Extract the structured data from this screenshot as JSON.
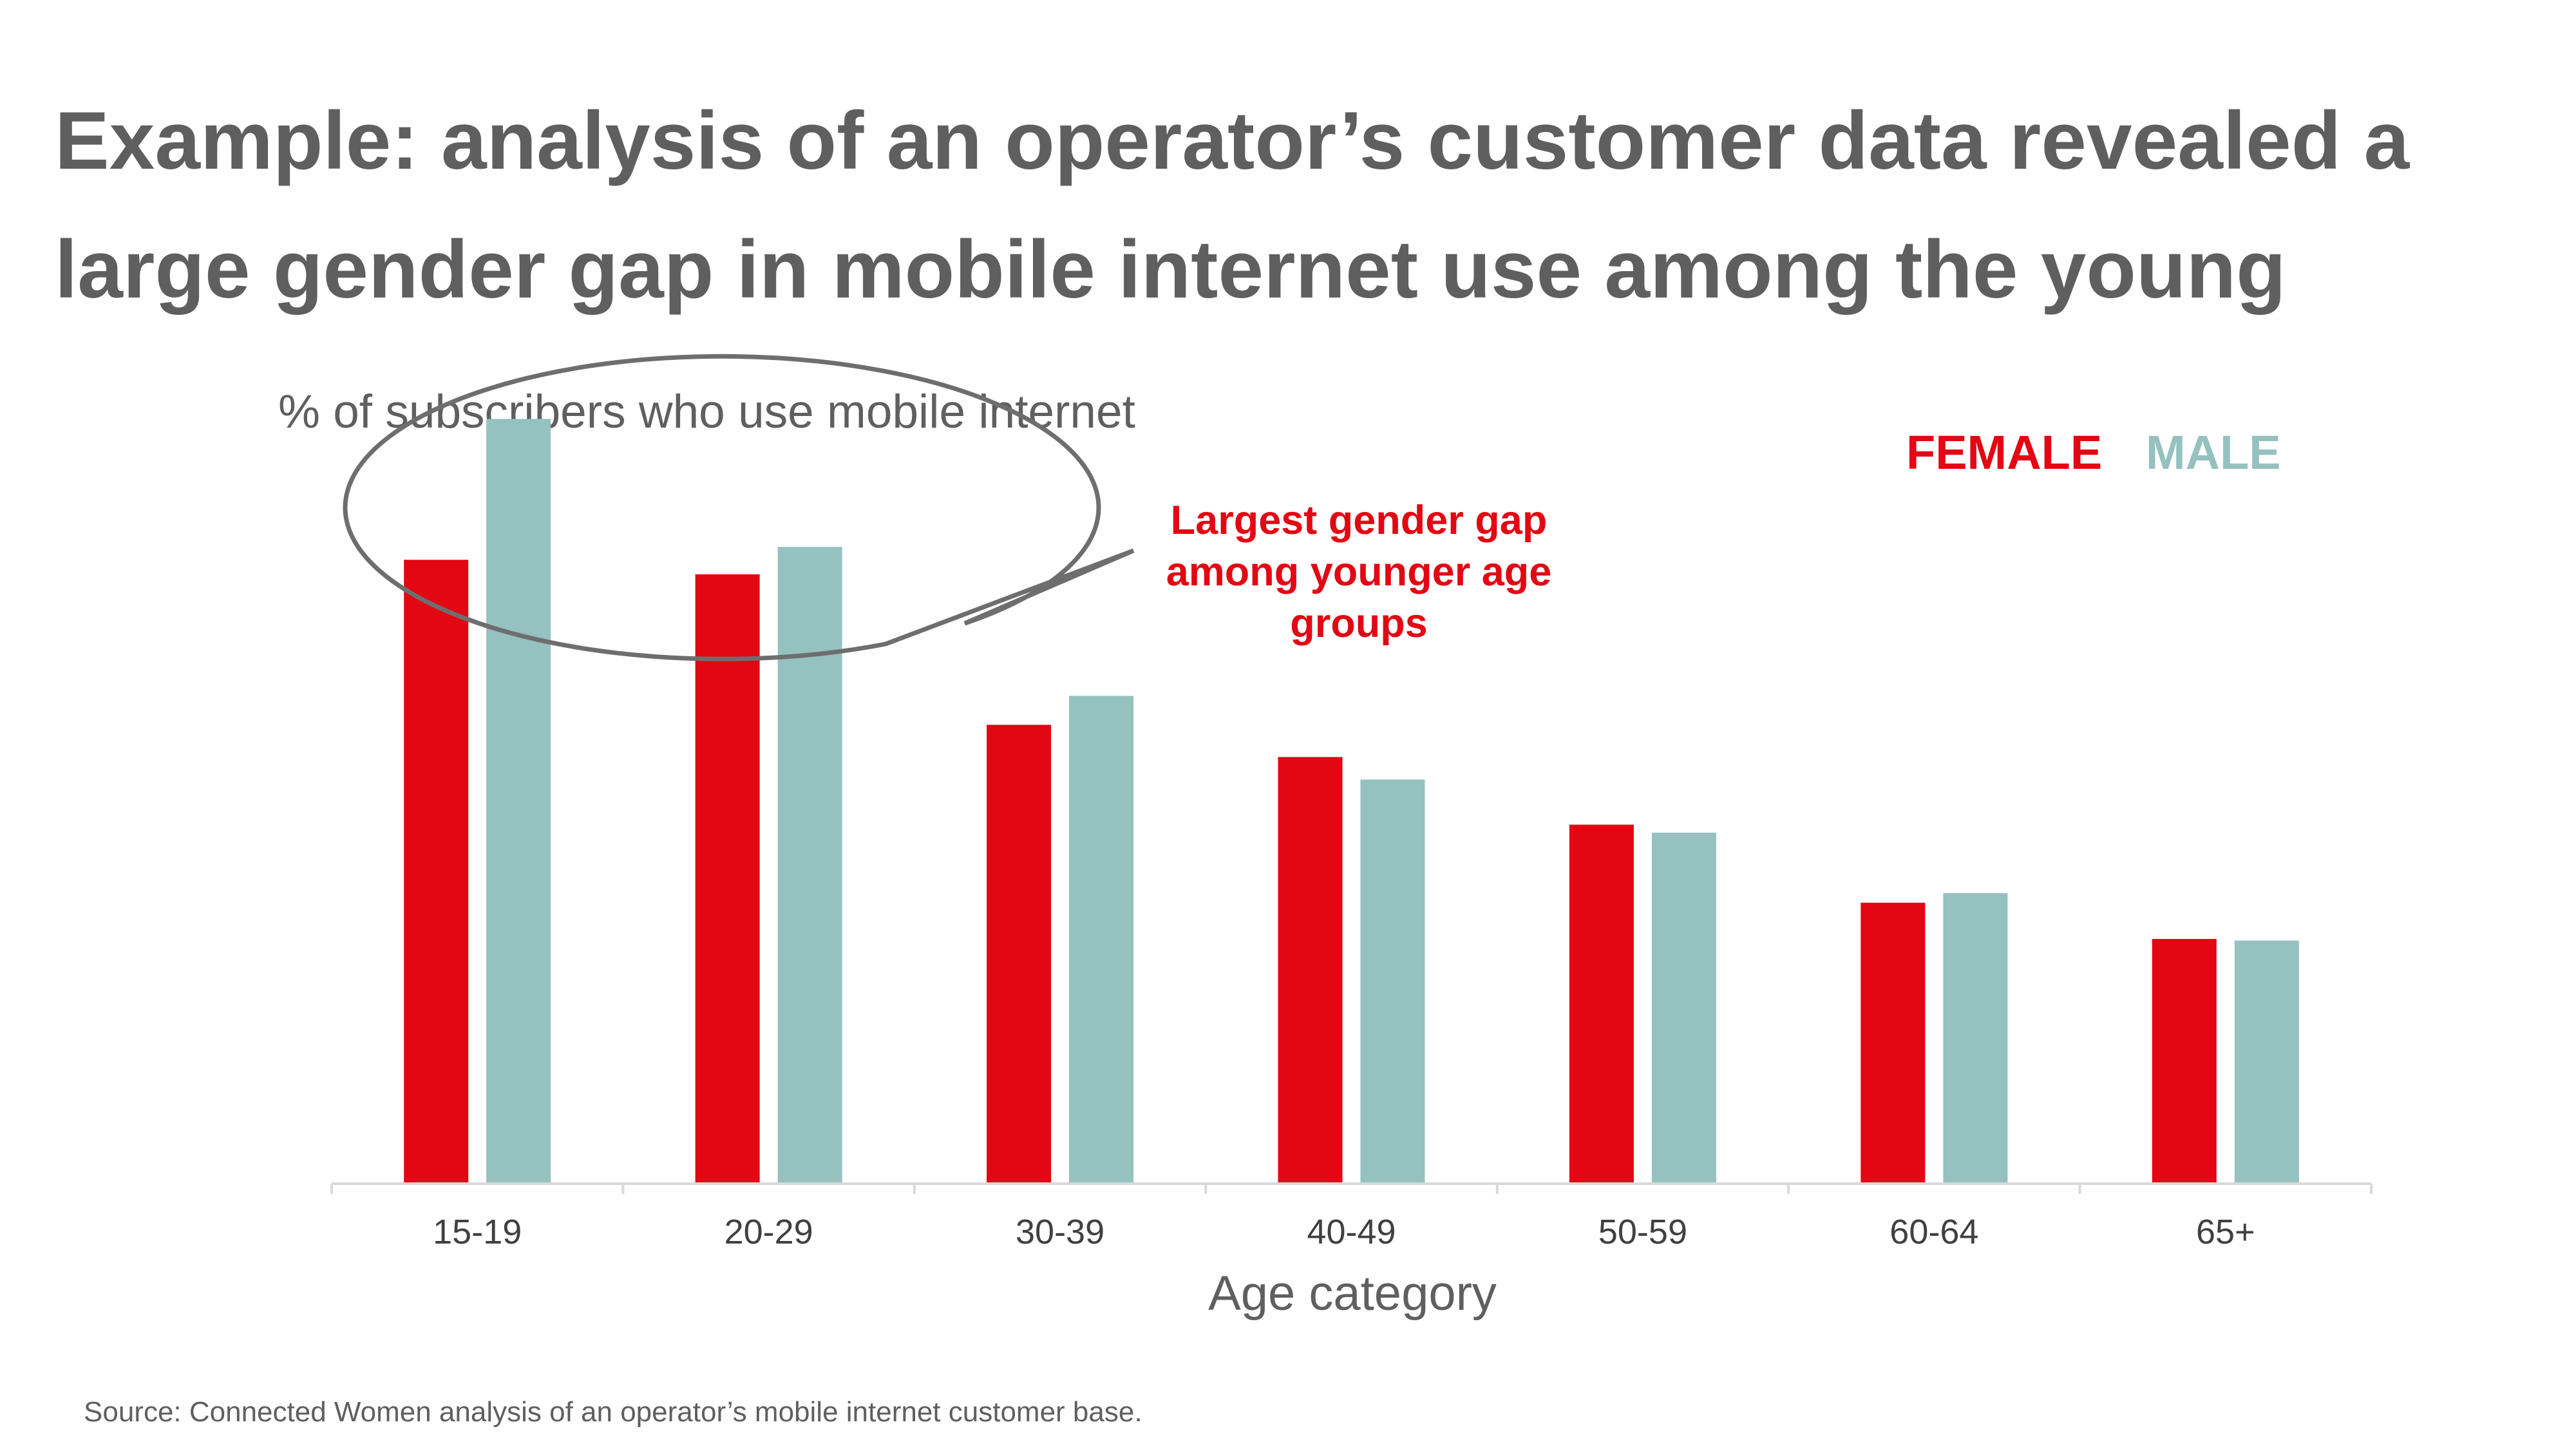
{
  "title": "Example: analysis of an operator’s customer data revealed a large gender gap in mobile internet use among the young",
  "source": "Source: Connected Women analysis of an operator’s mobile internet customer base.",
  "callout": "Largest gender gap among younger age groups",
  "colors": {
    "female": "#e30613",
    "male": "#95c1bf",
    "text": "#5f5f5f",
    "axis": "#d9d9d9",
    "callout_stroke": "#6e6e6e"
  },
  "chart_data": {
    "type": "bar",
    "title": "% of subscribers who use mobile internet",
    "xlabel": "Age category",
    "ylabel": "",
    "categories": [
      "15-19",
      "20-29",
      "30-39",
      "40-49",
      "50-59",
      "60-64",
      "65+"
    ],
    "series": [
      {
        "name": "FEMALE",
        "values": [
          77.5,
          75.7,
          57.0,
          53.0,
          44.6,
          34.9,
          30.4
        ]
      },
      {
        "name": "MALE",
        "values": [
          95.0,
          79.1,
          60.6,
          50.2,
          43.6,
          36.1,
          30.2
        ]
      }
    ],
    "ylim": [
      0,
      100
    ],
    "grid": false,
    "y_axis_visible": false,
    "legend_position": "top-right"
  }
}
